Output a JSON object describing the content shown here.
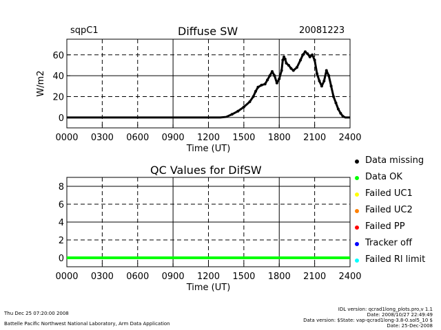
{
  "header": {
    "site": "sqpC1",
    "title": "Diffuse SW",
    "date": "20081223"
  },
  "colors": {
    "foreground": "#000000",
    "background": "#ffffff",
    "data_ok": "#00ff00",
    "failed_uc1": "#ffff00",
    "failed_uc2": "#ff8000",
    "failed_pp": "#ff0000",
    "tracker_off": "#0000ff",
    "failed_rl_limit": "#00ffff"
  },
  "legend": [
    {
      "label": "Data missing",
      "color": "#000000"
    },
    {
      "label": "Data OK",
      "color": "#00ff00"
    },
    {
      "label": "Failed UC1",
      "color": "#ffff00"
    },
    {
      "label": "Failed UC2",
      "color": "#ff8000"
    },
    {
      "label": "Failed PP",
      "color": "#ff0000"
    },
    {
      "label": "Tracker off",
      "color": "#0000ff"
    },
    {
      "label": "Failed Rl limit",
      "color": "#00ffff"
    }
  ],
  "footer": {
    "left_line1": "Thu Dec 25 07:20:00 2008",
    "left_line2": "Battelle Pacific Northwest National Laboratory, Arm Data Application",
    "right_lines": [
      "IDL version: qcrad1long_plots.pro,v 1.1",
      "Date: 2008/10/27 22:49:49",
      "Data version: $State: vap-qcrad1long-3.8-0.sol5_10 $",
      "Date: 25-Dec-2008"
    ]
  },
  "chart_data": [
    {
      "type": "scatter",
      "title": "Diffuse SW",
      "xlabel": "Time (UT)",
      "ylabel": "W/m2",
      "xlim": [
        0,
        2400
      ],
      "ylim": [
        -10,
        75
      ],
      "xticks": [
        "0000",
        "0300",
        "0600",
        "0900",
        "1200",
        "1500",
        "1800",
        "2100",
        "2400"
      ],
      "yticks": [
        "0",
        "20",
        "40",
        "60"
      ],
      "grid": true,
      "series": [
        {
          "color": "#000000",
          "x": [
            0,
            200,
            400,
            600,
            800,
            1000,
            1200,
            1300,
            1350,
            1400,
            1450,
            1500,
            1550,
            1580,
            1600,
            1620,
            1650,
            1680,
            1700,
            1720,
            1740,
            1760,
            1780,
            1800,
            1820,
            1830,
            1840,
            1850,
            1860,
            1880,
            1900,
            1920,
            1950,
            1980,
            2000,
            2020,
            2040,
            2060,
            2080,
            2100,
            2120,
            2140,
            2160,
            2180,
            2200,
            2220,
            2240,
            2260,
            2280,
            2300,
            2320,
            2340,
            2360,
            2380,
            2400
          ],
          "y": [
            0,
            0,
            0,
            0,
            0,
            0,
            0,
            0,
            0.5,
            3,
            6,
            10,
            15,
            20,
            25,
            29,
            31,
            32,
            36,
            40,
            44,
            40,
            33,
            37,
            45,
            55,
            58,
            56,
            52,
            50,
            47,
            45,
            48,
            55,
            60,
            63,
            61,
            58,
            60,
            55,
            42,
            35,
            30,
            35,
            45,
            40,
            30,
            20,
            14,
            8,
            4,
            1,
            0,
            0,
            0
          ]
        }
      ]
    },
    {
      "type": "scatter",
      "title": "QC Values for DifSW",
      "xlabel": "Time (UT)",
      "ylabel": "",
      "xlim": [
        0,
        2400
      ],
      "ylim": [
        -1,
        9
      ],
      "xticks": [
        "0000",
        "0300",
        "0600",
        "0900",
        "1200",
        "1500",
        "1800",
        "2100",
        "2400"
      ],
      "yticks": [
        "0",
        "2",
        "4",
        "6",
        "8"
      ],
      "grid": true,
      "series": [
        {
          "color": "#00ff00",
          "x": [
            0,
            2400
          ],
          "y": [
            0,
            0
          ]
        }
      ]
    }
  ]
}
